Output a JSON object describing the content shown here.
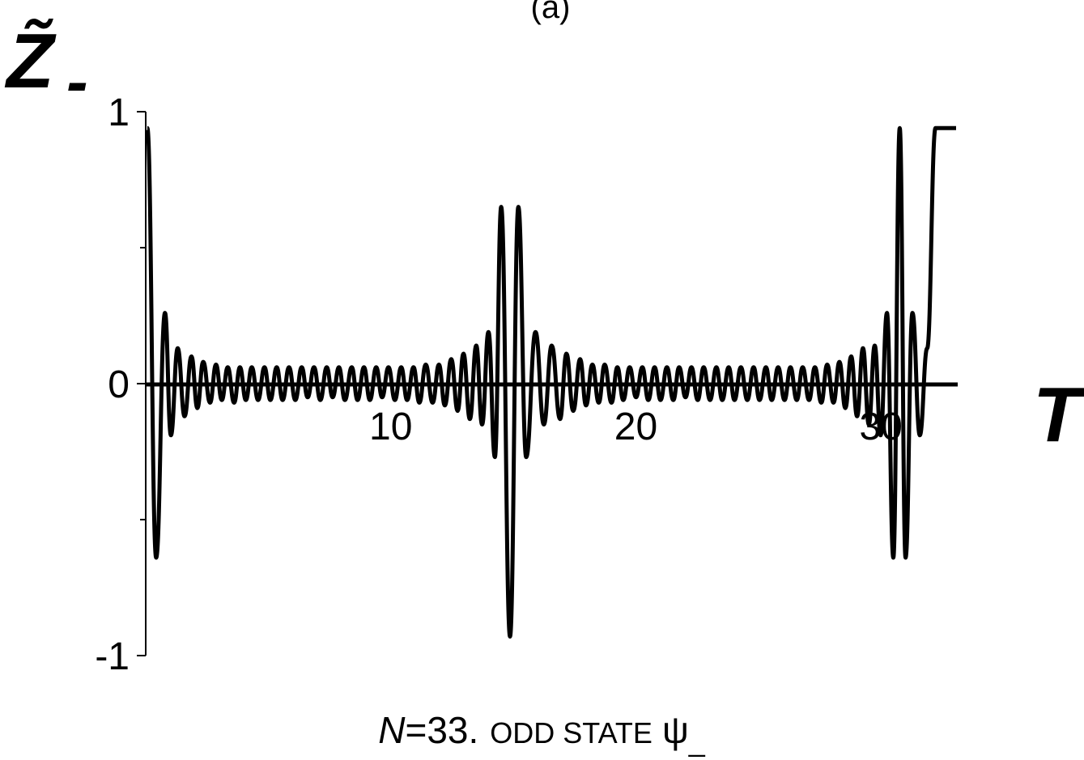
{
  "chart_data": {
    "type": "line",
    "title": "(a)",
    "ylabel": "Z̃",
    "ylabel_subscript": "-",
    "xlabel": "T",
    "xlim": [
      0,
      33
    ],
    "ylim": [
      -1,
      1
    ],
    "x_ticks": [
      10,
      20,
      30
    ],
    "x_tick_labels": [
      "10",
      "20",
      "30"
    ],
    "y_ticks": [
      -1,
      0,
      1
    ],
    "y_tick_labels": [
      "-1",
      "0",
      "1"
    ],
    "y_minor_ticks": [
      -0.5,
      0.5
    ],
    "grid": false,
    "series": [
      {
        "color": "#000000",
        "x": [
          0.0,
          0.36,
          0.72,
          0.96,
          1.24,
          1.52,
          1.8,
          2.04,
          2.28,
          2.56,
          2.8,
          3.04,
          3.28,
          3.54,
          3.78,
          4.02,
          4.26,
          4.52,
          4.78,
          5.02,
          5.28,
          5.52,
          5.78,
          6.04,
          6.3,
          6.54,
          6.8,
          7.06,
          7.32,
          7.56,
          7.82,
          8.06,
          8.34,
          8.58,
          8.84,
          9.08,
          9.34,
          9.58,
          9.84,
          10.1,
          10.36,
          10.6,
          10.86,
          11.1,
          11.36,
          11.64,
          11.9,
          12.14,
          12.4,
          12.66,
          12.9,
          13.16,
          13.42,
          13.66,
          13.92,
          14.18,
          14.44,
          14.8,
          15.14,
          15.46,
          15.84,
          16.18,
          16.5,
          16.84,
          17.1,
          17.38,
          17.66,
          17.9,
          18.16,
          18.42,
          18.66,
          18.94,
          19.18,
          19.42,
          19.68,
          19.94,
          20.2,
          20.44,
          20.7,
          20.94,
          21.2,
          21.46,
          21.7,
          21.96,
          22.2,
          22.46,
          22.7,
          22.96,
          23.22,
          23.46,
          23.72,
          23.96,
          24.22,
          24.48,
          24.74,
          24.98,
          25.24,
          25.48,
          25.74,
          26.0,
          26.24,
          26.5,
          26.74,
          27.0,
          27.24,
          27.5,
          27.74,
          28.0,
          28.24,
          28.48,
          28.72,
          28.96,
          29.2,
          29.44,
          29.68,
          29.92,
          30.18,
          30.44,
          30.7,
          30.94,
          31.22,
          31.52,
          31.82,
          32.16,
          32.5,
          33.0
        ],
        "y": [
          0.94,
          -0.64,
          0.26,
          -0.19,
          0.13,
          -0.12,
          0.1,
          -0.09,
          0.08,
          -0.07,
          0.07,
          -0.06,
          0.06,
          -0.07,
          0.06,
          -0.06,
          0.06,
          -0.06,
          0.06,
          -0.06,
          0.06,
          -0.06,
          0.06,
          -0.06,
          0.06,
          -0.05,
          0.06,
          -0.06,
          0.06,
          -0.05,
          0.06,
          -0.06,
          0.06,
          -0.06,
          0.06,
          -0.06,
          0.06,
          -0.05,
          0.06,
          -0.06,
          0.06,
          -0.06,
          0.06,
          -0.07,
          0.07,
          -0.07,
          0.07,
          -0.08,
          0.09,
          -0.1,
          0.11,
          -0.13,
          0.14,
          -0.15,
          0.19,
          -0.27,
          0.65,
          -0.93,
          0.65,
          -0.27,
          0.19,
          -0.15,
          0.14,
          -0.13,
          0.11,
          -0.1,
          0.09,
          -0.08,
          0.07,
          -0.07,
          0.07,
          -0.07,
          0.06,
          -0.06,
          0.06,
          -0.05,
          0.06,
          -0.06,
          0.06,
          -0.06,
          0.06,
          -0.06,
          0.06,
          -0.05,
          0.06,
          -0.06,
          0.06,
          -0.06,
          0.06,
          -0.06,
          0.06,
          -0.06,
          0.06,
          -0.06,
          0.06,
          -0.06,
          0.06,
          -0.06,
          0.06,
          -0.06,
          0.06,
          -0.06,
          0.06,
          -0.06,
          0.06,
          -0.07,
          0.07,
          -0.07,
          0.08,
          -0.09,
          0.1,
          -0.12,
          0.13,
          -0.15,
          0.14,
          -0.19,
          0.26,
          -0.64,
          0.94,
          -0.64,
          0.26,
          -0.19,
          0.13,
          0.94,
          0.94,
          0.94
        ]
      }
    ]
  },
  "caption": {
    "n_italic": "N",
    "n_value": "=33.",
    "small_caps_text": "ODD STATE",
    "psi": "ψ",
    "psi_subscript": "_"
  }
}
